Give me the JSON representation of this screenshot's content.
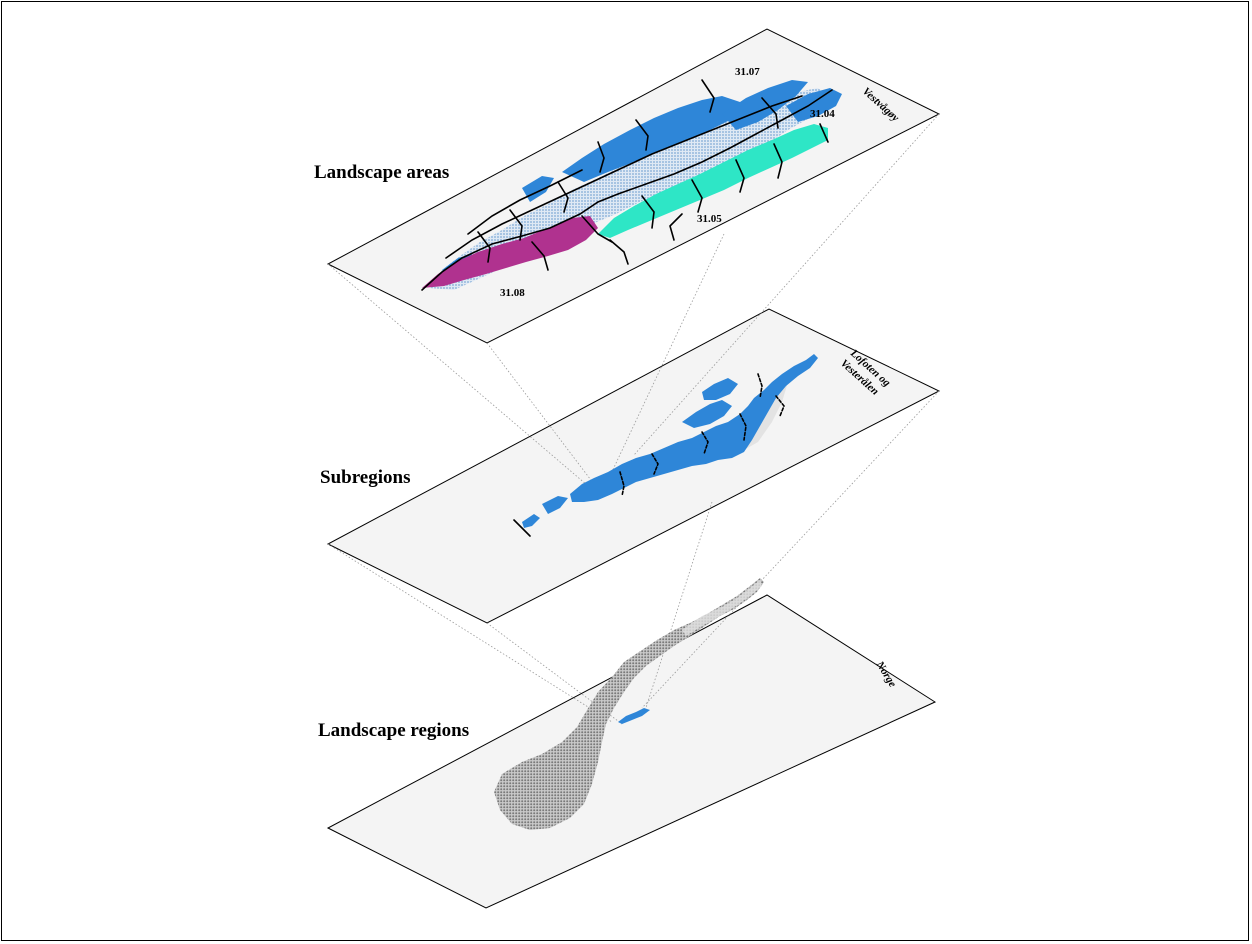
{
  "layers": {
    "landscape_areas": {
      "label": "Landscape areas",
      "place": "Vestvågøy"
    },
    "subregions": {
      "label": "Subregions",
      "place_line1": "Lofoten og",
      "place_line2": "Vesterålen"
    },
    "landscape_regions": {
      "label": "Landscape regions",
      "place": "Norge"
    }
  },
  "area_codes": [
    "31.07",
    "31.04",
    "31.05",
    "31.08"
  ],
  "colors": {
    "blue": "#2e86d8",
    "light_blue": "#c9dcee",
    "turquoise": "#2ee6c6",
    "magenta": "#b0328f",
    "grey_land": "#9d9d9d",
    "plane_fill": "#f4f4f4"
  }
}
